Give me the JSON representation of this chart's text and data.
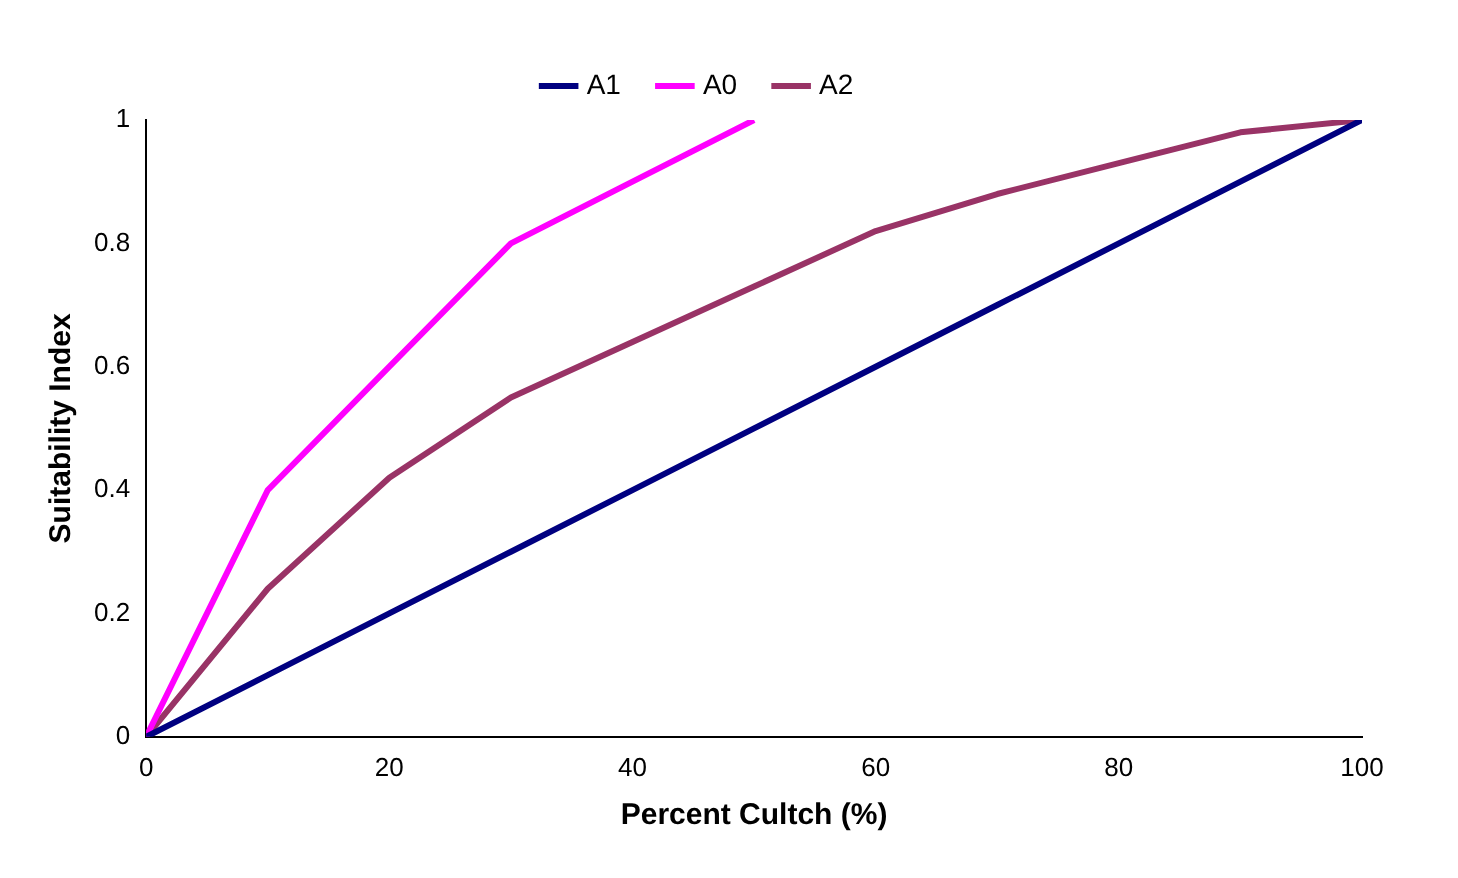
{
  "chart_data": {
    "type": "line",
    "xlabel": "Percent Cultch (%)",
    "ylabel": "Suitability Index",
    "xlim": [
      0,
      100
    ],
    "xticks": [
      0,
      20,
      40,
      60,
      80,
      100
    ],
    "ylim": [
      0,
      1
    ],
    "yticks": [
      0,
      0.2,
      0.4,
      0.6,
      0.8,
      1
    ],
    "grid": false,
    "legend": "top",
    "marker": "none",
    "line_style": "solid",
    "series": [
      {
        "name": "A1",
        "color": "#000080",
        "x": [
          0,
          10,
          20,
          30,
          40,
          50,
          60,
          70,
          80,
          90,
          100
        ],
        "values": [
          0,
          0.1,
          0.2,
          0.3,
          0.4,
          0.5,
          0.6,
          0.7,
          0.8,
          0.9,
          1
        ]
      },
      {
        "name": "A0",
        "color": "#ff00ff",
        "x": [
          0,
          10,
          20,
          30,
          40,
          50
        ],
        "values": [
          0,
          0.4,
          0.6,
          0.8,
          0.9,
          1
        ]
      },
      {
        "name": "A2",
        "color": "#993366",
        "x": [
          0,
          10,
          20,
          30,
          40,
          50,
          60,
          70,
          80,
          90,
          100
        ],
        "values": [
          0,
          0.24,
          0.42,
          0.55,
          0.64,
          0.73,
          0.82,
          0.88,
          0.93,
          0.98,
          1
        ]
      }
    ]
  }
}
